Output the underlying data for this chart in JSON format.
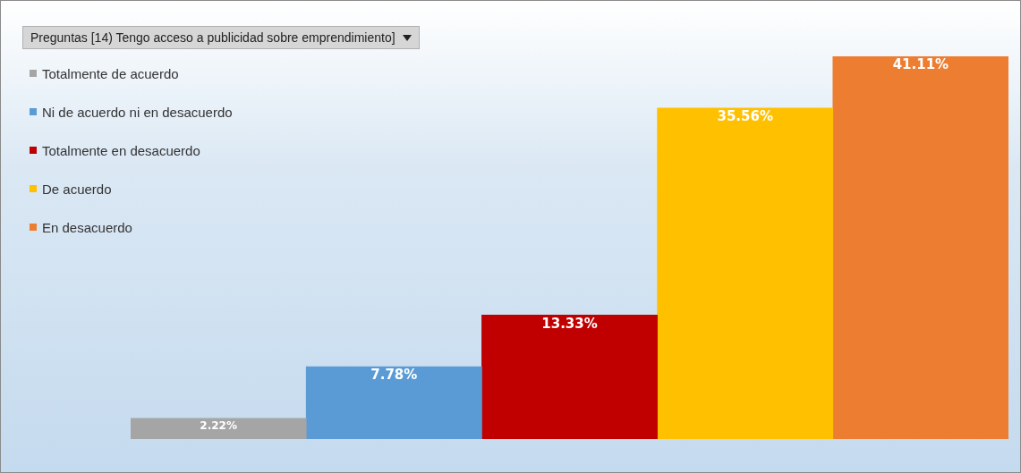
{
  "chart_data": {
    "type": "bar",
    "title": "Preguntas [14) Tengo acceso a publicidad sobre emprendimiento]",
    "categories": [
      null,
      null,
      null,
      null,
      null
    ],
    "stacked": true,
    "series": [
      {
        "name": "Totalmente de acuerdo",
        "color": "#a5a5a5",
        "values": [
          2.22,
          null,
          null,
          null,
          null
        ],
        "value_labels": [
          "2.22%",
          null,
          null,
          null,
          null
        ]
      },
      {
        "name": "Ni de acuerdo ni en desacuerdo",
        "color": "#5b9bd5",
        "values": [
          null,
          7.78,
          null,
          null,
          null
        ],
        "value_labels": [
          null,
          "7.78%",
          null,
          null,
          null
        ]
      },
      {
        "name": "Totalmente en desacuerdo",
        "color": "#c00000",
        "values": [
          null,
          null,
          13.33,
          null,
          null
        ],
        "value_labels": [
          null,
          null,
          "13.33%",
          null,
          null
        ]
      },
      {
        "name": "De acuerdo",
        "color": "#ffc000",
        "values": [
          null,
          null,
          null,
          35.56,
          null
        ],
        "value_labels": [
          null,
          null,
          null,
          "35.56%",
          null
        ]
      },
      {
        "name": "En desacuerdo",
        "color": "#ed7d31",
        "values": [
          null,
          null,
          null,
          null,
          41.11
        ],
        "value_labels": [
          null,
          null,
          null,
          null,
          "41.11%"
        ]
      }
    ],
    "legend": "top left"
  }
}
